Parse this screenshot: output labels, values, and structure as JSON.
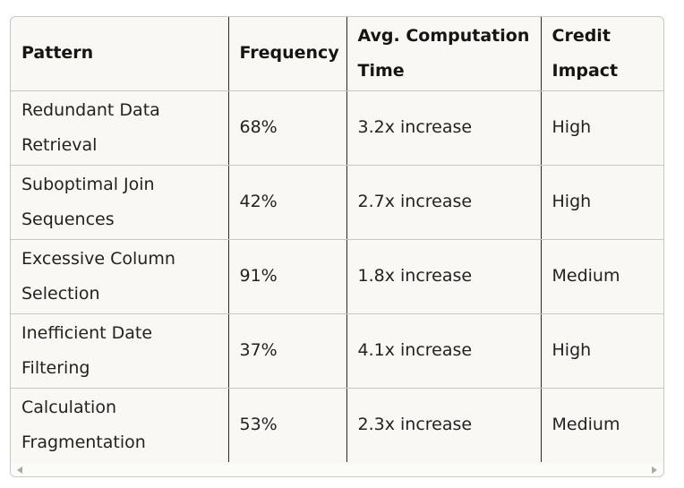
{
  "table": {
    "headers": [
      "Pattern",
      "Frequency",
      "Avg. Computation Time",
      "Credit Impact"
    ],
    "rows": [
      [
        "Redundant Data Retrieval",
        "68%",
        "3.2x increase",
        "High"
      ],
      [
        "Suboptimal Join Sequences",
        "42%",
        "2.7x increase",
        "High"
      ],
      [
        "Excessive Column Selection",
        "91%",
        "1.8x increase",
        "Medium"
      ],
      [
        "Inefficient Date Filtering",
        "37%",
        "4.1x increase",
        "High"
      ],
      [
        "Calculation Fragmentation",
        "53%",
        "2.3x increase",
        "Medium"
      ]
    ]
  },
  "scrollbar": {
    "left_icon": "scroll-left-arrow-icon",
    "right_icon": "scroll-right-arrow-icon"
  },
  "colors": {
    "table_background": "#f9f8f5",
    "border": "#c9c7c1",
    "column_divider": "#2a2a2a"
  }
}
